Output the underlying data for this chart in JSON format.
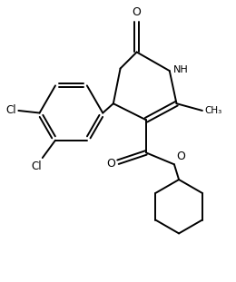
{
  "background_color": "#ffffff",
  "line_color": "#000000",
  "line_width": 1.4,
  "figsize": [
    2.6,
    3.11
  ],
  "dpi": 100,
  "xlim": [
    0,
    10
  ],
  "ylim": [
    0,
    12
  ]
}
